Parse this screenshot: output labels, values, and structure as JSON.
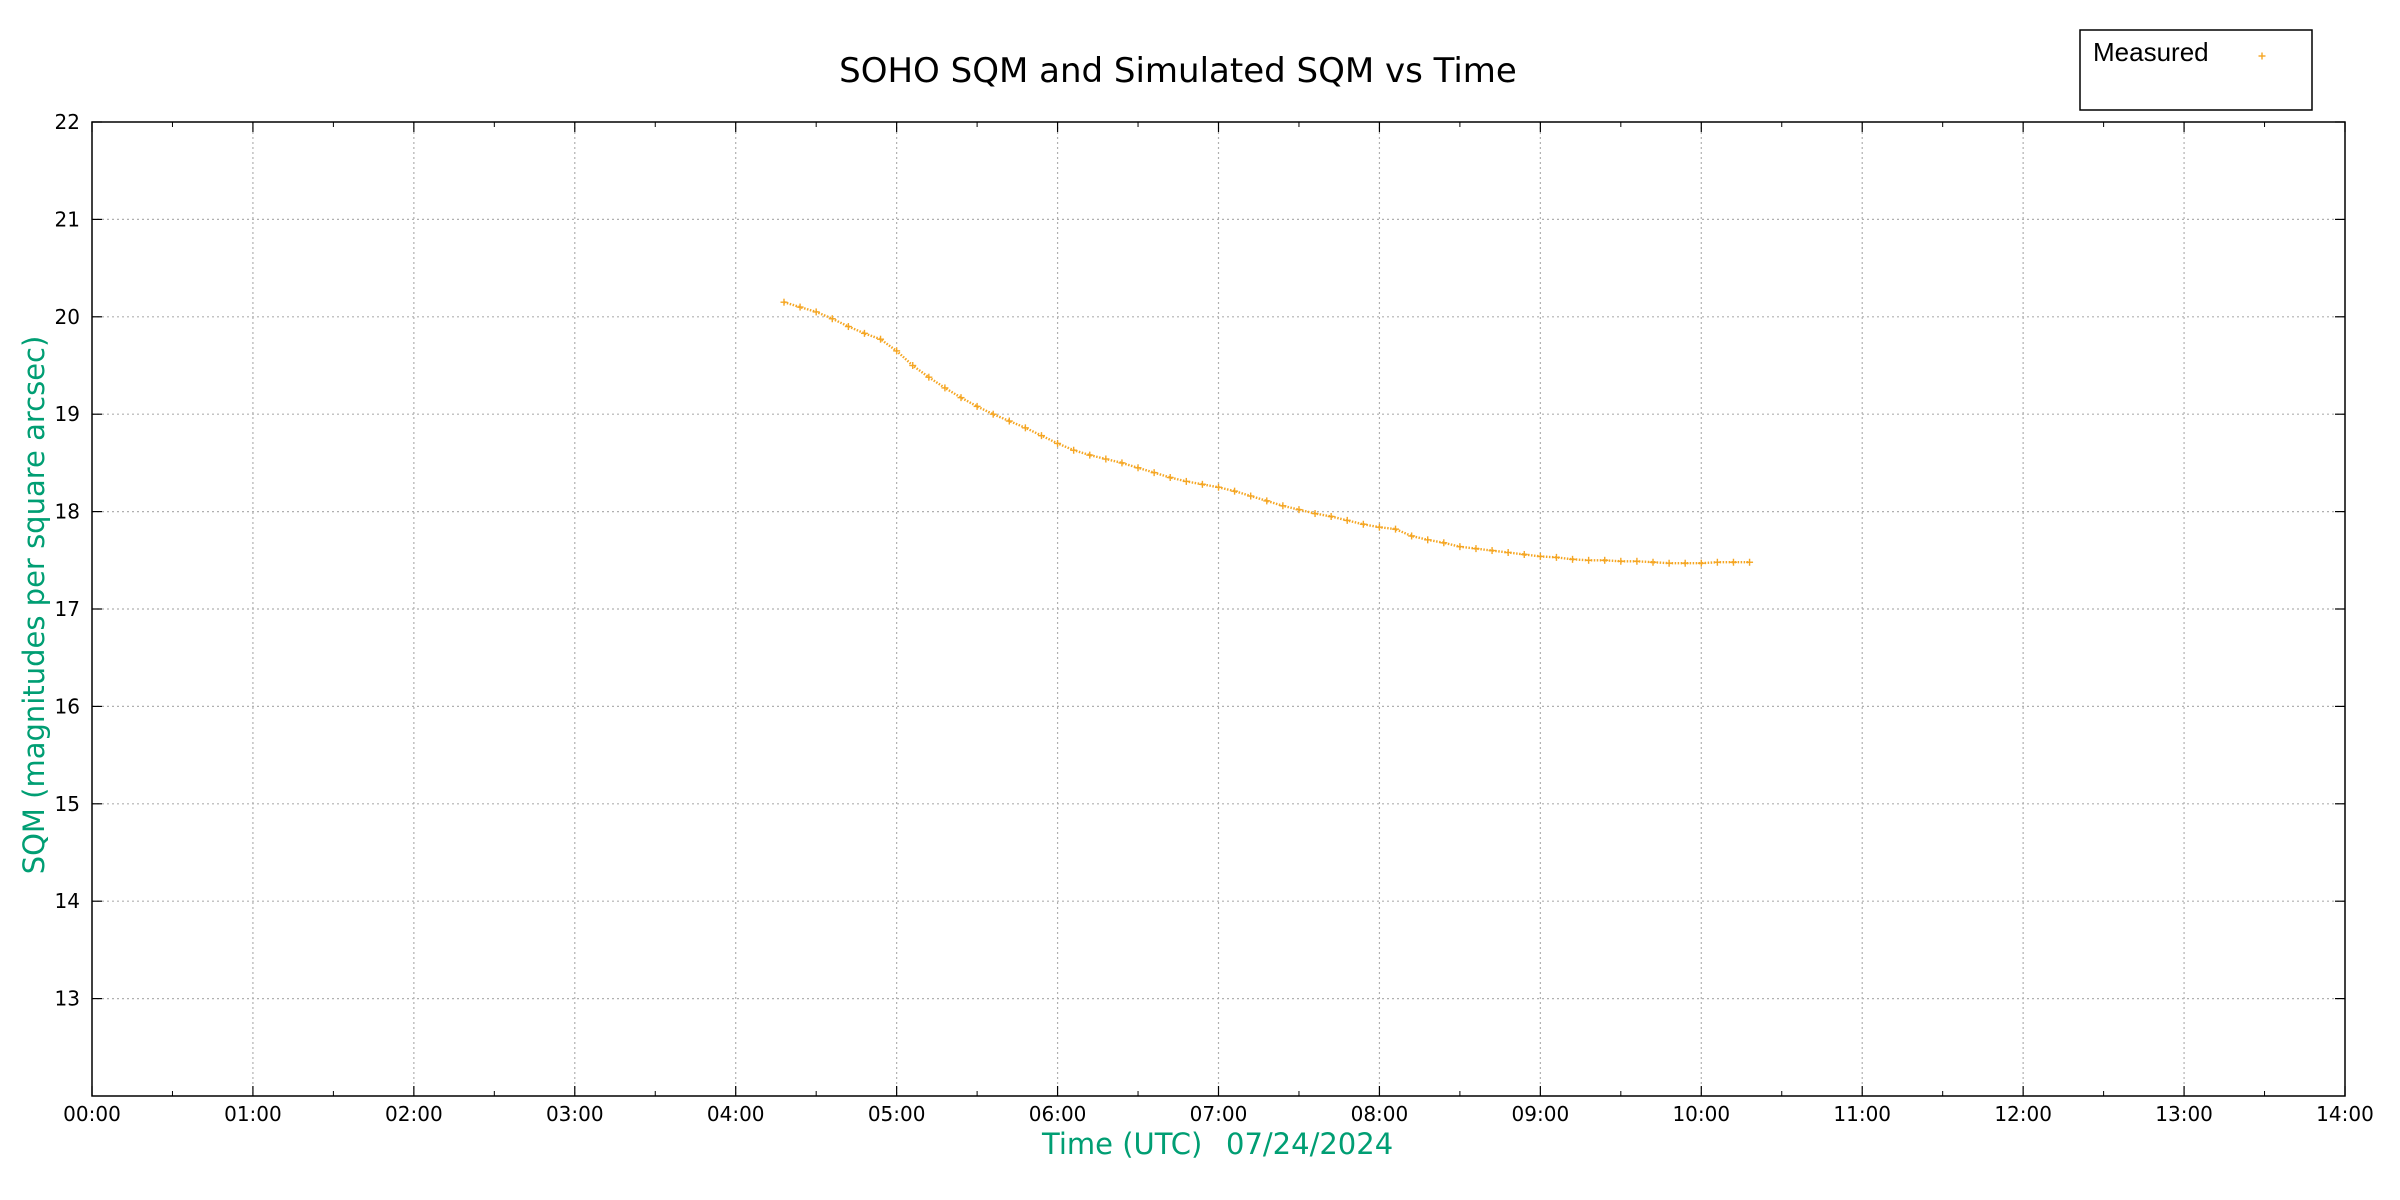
{
  "chart_data": {
    "type": "scatter",
    "title": "SOHO SQM and Simulated SQM vs Time",
    "xlabel": "Time (UTC)",
    "xlabel_date": "07/24/2024",
    "ylabel": "SQM (magnitudes per square arcsec)",
    "xlim": [
      "00:00",
      "14:00"
    ],
    "ylim": [
      12,
      22
    ],
    "x_ticks": [
      "00:00",
      "01:00",
      "02:00",
      "03:00",
      "04:00",
      "05:00",
      "06:00",
      "07:00",
      "08:00",
      "09:00",
      "10:00",
      "11:00",
      "12:00",
      "13:00",
      "14:00"
    ],
    "y_ticks": [
      "13",
      "14",
      "15",
      "16",
      "17",
      "18",
      "19",
      "20",
      "21",
      "22"
    ],
    "grid": true,
    "legend_position": "top-right",
    "colors": {
      "measured": "#f5a623",
      "axis_label": "#009e73",
      "grid": "#b0b0b0"
    },
    "series": [
      {
        "name": "Measured",
        "marker": "plus",
        "x": [
          "04:18",
          "04:24",
          "04:30",
          "04:36",
          "04:42",
          "04:48",
          "04:54",
          "05:00",
          "05:06",
          "05:12",
          "05:18",
          "05:24",
          "05:30",
          "05:36",
          "05:42",
          "05:48",
          "05:54",
          "06:00",
          "06:06",
          "06:12",
          "06:18",
          "06:24",
          "06:30",
          "06:36",
          "06:42",
          "06:48",
          "06:54",
          "07:00",
          "07:06",
          "07:12",
          "07:18",
          "07:24",
          "07:30",
          "07:36",
          "07:42",
          "07:48",
          "07:54",
          "08:00",
          "08:06",
          "08:12",
          "08:18",
          "08:24",
          "08:30",
          "08:36",
          "08:42",
          "08:48",
          "08:54",
          "09:00",
          "09:06",
          "09:12",
          "09:18",
          "09:24",
          "09:30",
          "09:36",
          "09:42",
          "09:48",
          "09:54",
          "10:00",
          "10:06",
          "10:12",
          "10:18"
        ],
        "y": [
          20.15,
          20.1,
          20.05,
          19.98,
          19.9,
          19.83,
          19.77,
          19.65,
          19.5,
          19.38,
          19.27,
          19.17,
          19.08,
          19.0,
          18.93,
          18.86,
          18.78,
          18.7,
          18.63,
          18.58,
          18.54,
          18.5,
          18.45,
          18.4,
          18.35,
          18.31,
          18.28,
          18.25,
          18.21,
          18.16,
          18.11,
          18.06,
          18.02,
          17.98,
          17.95,
          17.91,
          17.87,
          17.84,
          17.82,
          17.75,
          17.71,
          17.68,
          17.64,
          17.62,
          17.6,
          17.58,
          17.56,
          17.54,
          17.53,
          17.51,
          17.5,
          17.5,
          17.49,
          17.49,
          17.48,
          17.47,
          17.47,
          17.47,
          17.48,
          17.48,
          17.48
        ]
      }
    ]
  }
}
